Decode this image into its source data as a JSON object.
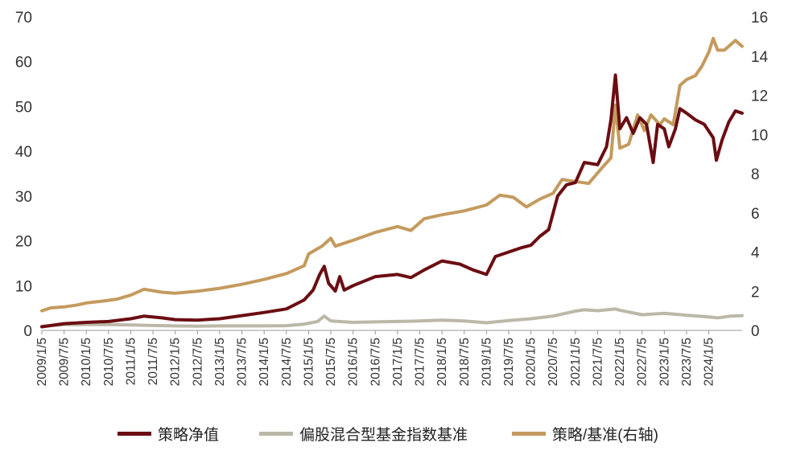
{
  "chart_data": {
    "type": "line",
    "title": "",
    "xlabel": "",
    "ylabel": "",
    "y_left": {
      "ticks": [
        "0",
        "10",
        "20",
        "30",
        "40",
        "50",
        "60",
        "70"
      ],
      "ylim": [
        0,
        70
      ]
    },
    "y_right": {
      "ticks": [
        "0",
        "2",
        "4",
        "6",
        "8",
        "10",
        "12",
        "14",
        "16"
      ],
      "ylim": [
        0,
        16
      ]
    },
    "x_ticks": [
      "2009/1/5",
      "2009/7/5",
      "2010/1/5",
      "2010/7/5",
      "2011/1/5",
      "2011/7/5",
      "2012/1/5",
      "2012/7/5",
      "2013/1/5",
      "2013/7/5",
      "2014/1/5",
      "2014/7/5",
      "2015/1/5",
      "2015/7/5",
      "2016/1/5",
      "2016/7/5",
      "2017/1/5",
      "2017/7/5",
      "2018/1/5",
      "2018/7/5",
      "2019/1/5",
      "2019/7/5",
      "2020/1/5",
      "2020/7/5",
      "2021/1/5",
      "2021/7/5",
      "2022/1/5",
      "2022/7/5",
      "2023/1/5",
      "2023/7/5",
      "2024/1/5"
    ],
    "x_range": [
      2009.0,
      2024.75
    ],
    "grid": false,
    "legend_position": "bottom",
    "series": [
      {
        "name": "策略净值",
        "axis": "left",
        "color": "#6b0d12",
        "points": [
          [
            2009.0,
            0.8
          ],
          [
            2009.5,
            1.5
          ],
          [
            2010.0,
            1.8
          ],
          [
            2010.5,
            2.0
          ],
          [
            2011.0,
            2.6
          ],
          [
            2011.3,
            3.2
          ],
          [
            2011.7,
            2.8
          ],
          [
            2012.0,
            2.4
          ],
          [
            2012.5,
            2.3
          ],
          [
            2013.0,
            2.6
          ],
          [
            2013.5,
            3.3
          ],
          [
            2014.0,
            4.0
          ],
          [
            2014.5,
            4.8
          ],
          [
            2014.9,
            6.8
          ],
          [
            2015.1,
            9.0
          ],
          [
            2015.25,
            12.5
          ],
          [
            2015.35,
            14.3
          ],
          [
            2015.45,
            10.5
          ],
          [
            2015.6,
            8.8
          ],
          [
            2015.7,
            12.0
          ],
          [
            2015.8,
            9.0
          ],
          [
            2016.0,
            10.0
          ],
          [
            2016.5,
            12.0
          ],
          [
            2017.0,
            12.5
          ],
          [
            2017.3,
            11.8
          ],
          [
            2017.6,
            13.5
          ],
          [
            2018.0,
            15.5
          ],
          [
            2018.4,
            14.8
          ],
          [
            2018.7,
            13.5
          ],
          [
            2019.0,
            12.5
          ],
          [
            2019.2,
            16.5
          ],
          [
            2019.5,
            17.5
          ],
          [
            2019.8,
            18.5
          ],
          [
            2020.0,
            19.0
          ],
          [
            2020.2,
            21.0
          ],
          [
            2020.4,
            22.5
          ],
          [
            2020.6,
            30.0
          ],
          [
            2020.8,
            32.5
          ],
          [
            2021.0,
            33.0
          ],
          [
            2021.2,
            37.5
          ],
          [
            2021.5,
            37.0
          ],
          [
            2021.7,
            41.0
          ],
          [
            2021.8,
            47.0
          ],
          [
            2021.9,
            57.0
          ],
          [
            2022.0,
            45.0
          ],
          [
            2022.15,
            47.5
          ],
          [
            2022.3,
            44.0
          ],
          [
            2022.45,
            47.5
          ],
          [
            2022.6,
            46.0
          ],
          [
            2022.75,
            37.5
          ],
          [
            2022.85,
            46.0
          ],
          [
            2023.0,
            45.0
          ],
          [
            2023.1,
            41.0
          ],
          [
            2023.25,
            45.0
          ],
          [
            2023.35,
            49.5
          ],
          [
            2023.5,
            48.5
          ],
          [
            2023.7,
            47.0
          ],
          [
            2023.9,
            46.0
          ],
          [
            2024.0,
            44.5
          ],
          [
            2024.1,
            43.0
          ],
          [
            2024.17,
            38.0
          ],
          [
            2024.3,
            42.5
          ],
          [
            2024.45,
            46.5
          ],
          [
            2024.6,
            49.0
          ],
          [
            2024.75,
            48.5
          ]
        ]
      },
      {
        "name": "偏股混合型基金指数基准",
        "axis": "left",
        "color": "#bcb8a8",
        "points": [
          [
            2009.0,
            0.9
          ],
          [
            2009.5,
            1.3
          ],
          [
            2010.0,
            1.3
          ],
          [
            2010.5,
            1.3
          ],
          [
            2011.0,
            1.2
          ],
          [
            2011.5,
            1.1
          ],
          [
            2012.0,
            1.0
          ],
          [
            2012.5,
            0.95
          ],
          [
            2013.0,
            1.0
          ],
          [
            2013.5,
            1.0
          ],
          [
            2014.0,
            1.0
          ],
          [
            2014.5,
            1.05
          ],
          [
            2014.9,
            1.4
          ],
          [
            2015.2,
            2.0
          ],
          [
            2015.35,
            3.2
          ],
          [
            2015.5,
            2.1
          ],
          [
            2016.0,
            1.8
          ],
          [
            2016.5,
            1.9
          ],
          [
            2017.0,
            2.0
          ],
          [
            2017.5,
            2.1
          ],
          [
            2018.0,
            2.3
          ],
          [
            2018.5,
            2.1
          ],
          [
            2019.0,
            1.7
          ],
          [
            2019.5,
            2.2
          ],
          [
            2020.0,
            2.6
          ],
          [
            2020.5,
            3.2
          ],
          [
            2021.0,
            4.3
          ],
          [
            2021.2,
            4.6
          ],
          [
            2021.5,
            4.4
          ],
          [
            2021.9,
            4.8
          ],
          [
            2022.0,
            4.5
          ],
          [
            2022.5,
            3.5
          ],
          [
            2023.0,
            3.8
          ],
          [
            2023.5,
            3.4
          ],
          [
            2024.0,
            3.0
          ],
          [
            2024.2,
            2.8
          ],
          [
            2024.5,
            3.2
          ],
          [
            2024.75,
            3.3
          ]
        ]
      },
      {
        "name": "策略/基准(右轴)",
        "axis": "right",
        "color": "#c49a5e",
        "points": [
          [
            2009.0,
            1.0
          ],
          [
            2009.2,
            1.15
          ],
          [
            2009.5,
            1.2
          ],
          [
            2009.8,
            1.3
          ],
          [
            2010.0,
            1.4
          ],
          [
            2010.4,
            1.5
          ],
          [
            2010.7,
            1.6
          ],
          [
            2011.0,
            1.8
          ],
          [
            2011.3,
            2.1
          ],
          [
            2011.7,
            1.95
          ],
          [
            2012.0,
            1.9
          ],
          [
            2012.5,
            2.0
          ],
          [
            2013.0,
            2.15
          ],
          [
            2013.5,
            2.35
          ],
          [
            2014.0,
            2.6
          ],
          [
            2014.5,
            2.9
          ],
          [
            2014.9,
            3.3
          ],
          [
            2015.0,
            3.9
          ],
          [
            2015.3,
            4.3
          ],
          [
            2015.5,
            4.7
          ],
          [
            2015.6,
            4.3
          ],
          [
            2016.0,
            4.6
          ],
          [
            2016.5,
            5.0
          ],
          [
            2017.0,
            5.3
          ],
          [
            2017.3,
            5.1
          ],
          [
            2017.6,
            5.7
          ],
          [
            2018.0,
            5.9
          ],
          [
            2018.5,
            6.1
          ],
          [
            2019.0,
            6.4
          ],
          [
            2019.3,
            6.9
          ],
          [
            2019.6,
            6.8
          ],
          [
            2019.9,
            6.3
          ],
          [
            2020.2,
            6.7
          ],
          [
            2020.5,
            7.0
          ],
          [
            2020.7,
            7.7
          ],
          [
            2021.0,
            7.6
          ],
          [
            2021.3,
            7.5
          ],
          [
            2021.6,
            8.3
          ],
          [
            2021.8,
            8.8
          ],
          [
            2021.9,
            11.5
          ],
          [
            2022.0,
            9.3
          ],
          [
            2022.2,
            9.5
          ],
          [
            2022.4,
            11.0
          ],
          [
            2022.55,
            10.2
          ],
          [
            2022.7,
            11.0
          ],
          [
            2022.9,
            10.5
          ],
          [
            2023.0,
            10.8
          ],
          [
            2023.2,
            10.5
          ],
          [
            2023.35,
            12.5
          ],
          [
            2023.5,
            12.8
          ],
          [
            2023.7,
            13.0
          ],
          [
            2023.85,
            13.5
          ],
          [
            2024.0,
            14.2
          ],
          [
            2024.1,
            14.9
          ],
          [
            2024.2,
            14.3
          ],
          [
            2024.35,
            14.3
          ],
          [
            2024.5,
            14.6
          ],
          [
            2024.6,
            14.8
          ],
          [
            2024.75,
            14.5
          ]
        ]
      }
    ]
  },
  "legend": {
    "items": [
      {
        "label": "策略净值",
        "color": "#6b0d12"
      },
      {
        "label": "偏股混合型基金指数基准",
        "color": "#bcb8a8"
      },
      {
        "label": "策略/基准(右轴)",
        "color": "#c49a5e"
      }
    ]
  }
}
